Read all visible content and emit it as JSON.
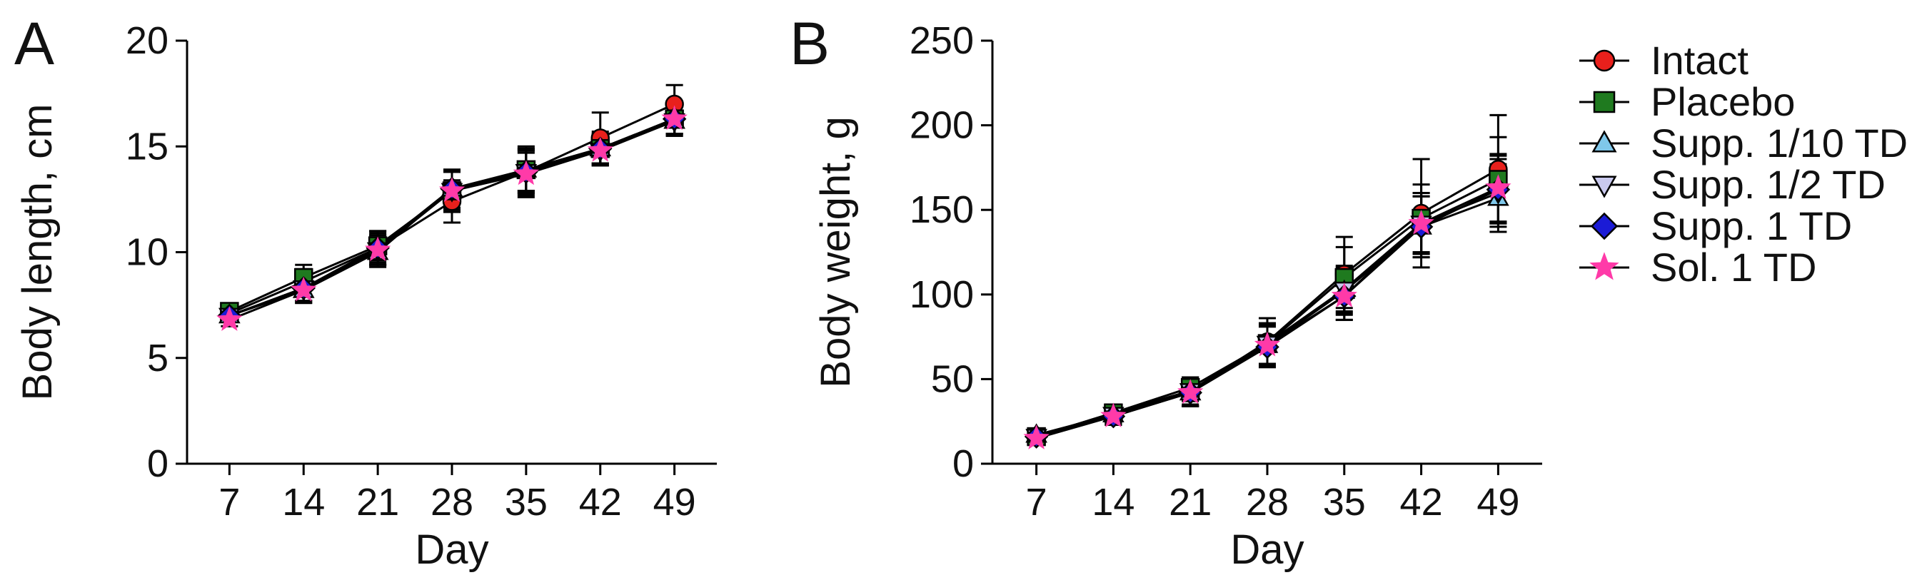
{
  "chart_data": [
    {
      "type": "line",
      "panel": "A",
      "x": [
        7,
        14,
        21,
        28,
        35,
        42,
        49
      ],
      "xlabel": "Day",
      "ylabel": "Body length, cm",
      "ylim": [
        0,
        20
      ],
      "yticks": [
        0,
        5,
        10,
        15,
        20
      ],
      "series": [
        {
          "name": "Intact",
          "values": [
            7.1,
            8.6,
            10.2,
            12.4,
            13.8,
            15.4,
            17.0
          ],
          "error": [
            0.3,
            0.6,
            0.8,
            1.0,
            1.2,
            1.2,
            0.9
          ]
        },
        {
          "name": "Placebo",
          "values": [
            7.2,
            8.8,
            10.3,
            12.9,
            13.9,
            14.9,
            16.3
          ],
          "error": [
            0.3,
            0.6,
            0.7,
            1.0,
            1.0,
            0.8,
            0.7
          ]
        },
        {
          "name": "Supp. 1/10 TD",
          "values": [
            7.0,
            8.2,
            10.0,
            13.0,
            13.9,
            14.9,
            16.2
          ],
          "error": [
            0.3,
            0.6,
            0.7,
            0.9,
            1.0,
            0.7,
            0.7
          ]
        },
        {
          "name": "Supp. 1/2 TD",
          "values": [
            7.0,
            8.3,
            10.1,
            12.9,
            13.8,
            14.8,
            16.2
          ],
          "error": [
            0.3,
            0.6,
            0.7,
            0.9,
            1.0,
            0.7,
            0.7
          ]
        },
        {
          "name": "Supp. 1 TD",
          "values": [
            7.0,
            8.3,
            10.2,
            13.0,
            13.8,
            14.9,
            16.3
          ],
          "error": [
            0.3,
            0.6,
            0.7,
            0.9,
            1.0,
            0.7,
            0.7
          ]
        },
        {
          "name": "Sol. 1 TD",
          "values": [
            6.8,
            8.2,
            10.1,
            12.9,
            13.7,
            14.8,
            16.3
          ],
          "error": [
            0.3,
            0.6,
            0.7,
            0.9,
            1.0,
            0.7,
            0.7
          ]
        }
      ]
    },
    {
      "type": "line",
      "panel": "B",
      "x": [
        7,
        14,
        21,
        28,
        35,
        42,
        49
      ],
      "xlabel": "Day",
      "ylabel": "Body weight, g",
      "ylim": [
        0,
        250
      ],
      "yticks": [
        0,
        50,
        100,
        150,
        200,
        250
      ],
      "series": [
        {
          "name": "Intact",
          "values": [
            16,
            30,
            43,
            72,
            112,
            148,
            174
          ],
          "error": [
            3,
            5,
            6,
            14,
            22,
            32,
            32
          ]
        },
        {
          "name": "Placebo",
          "values": [
            16,
            30,
            45,
            71,
            110,
            145,
            168
          ],
          "error": [
            3,
            5,
            6,
            12,
            18,
            20,
            25
          ]
        },
        {
          "name": "Supp. 1/10 TD",
          "values": [
            17,
            29,
            42,
            70,
            102,
            140,
            157
          ],
          "error": [
            3,
            5,
            8,
            12,
            14,
            18,
            20
          ]
        },
        {
          "name": "Supp. 1/2 TD",
          "values": [
            16,
            29,
            43,
            71,
            103,
            142,
            160
          ],
          "error": [
            3,
            5,
            8,
            12,
            14,
            18,
            20
          ]
        },
        {
          "name": "Supp. 1 TD",
          "values": [
            16,
            28,
            42,
            69,
            99,
            140,
            162
          ],
          "error": [
            3,
            5,
            8,
            12,
            14,
            18,
            20
          ]
        },
        {
          "name": "Sol. 1 TD",
          "values": [
            15,
            28,
            42,
            70,
            99,
            142,
            163
          ],
          "error": [
            3,
            5,
            8,
            12,
            14,
            18,
            20
          ]
        }
      ]
    }
  ],
  "legend": {
    "placement": "right",
    "items": [
      {
        "name": "Intact",
        "marker": "circle",
        "color": "#e8201c"
      },
      {
        "name": "Placebo",
        "marker": "square",
        "color": "#1f7a1f"
      },
      {
        "name": "Supp. 1/10 TD",
        "marker": "triangle-up",
        "color": "#7fc7ea"
      },
      {
        "name": "Supp. 1/2 TD",
        "marker": "triangle-down",
        "color": "#c9c9ee"
      },
      {
        "name": "Supp. 1 TD",
        "marker": "diamond",
        "color": "#1b1bd6"
      },
      {
        "name": "Sol. 1 TD",
        "marker": "star",
        "color": "#ff3aa8"
      }
    ]
  }
}
